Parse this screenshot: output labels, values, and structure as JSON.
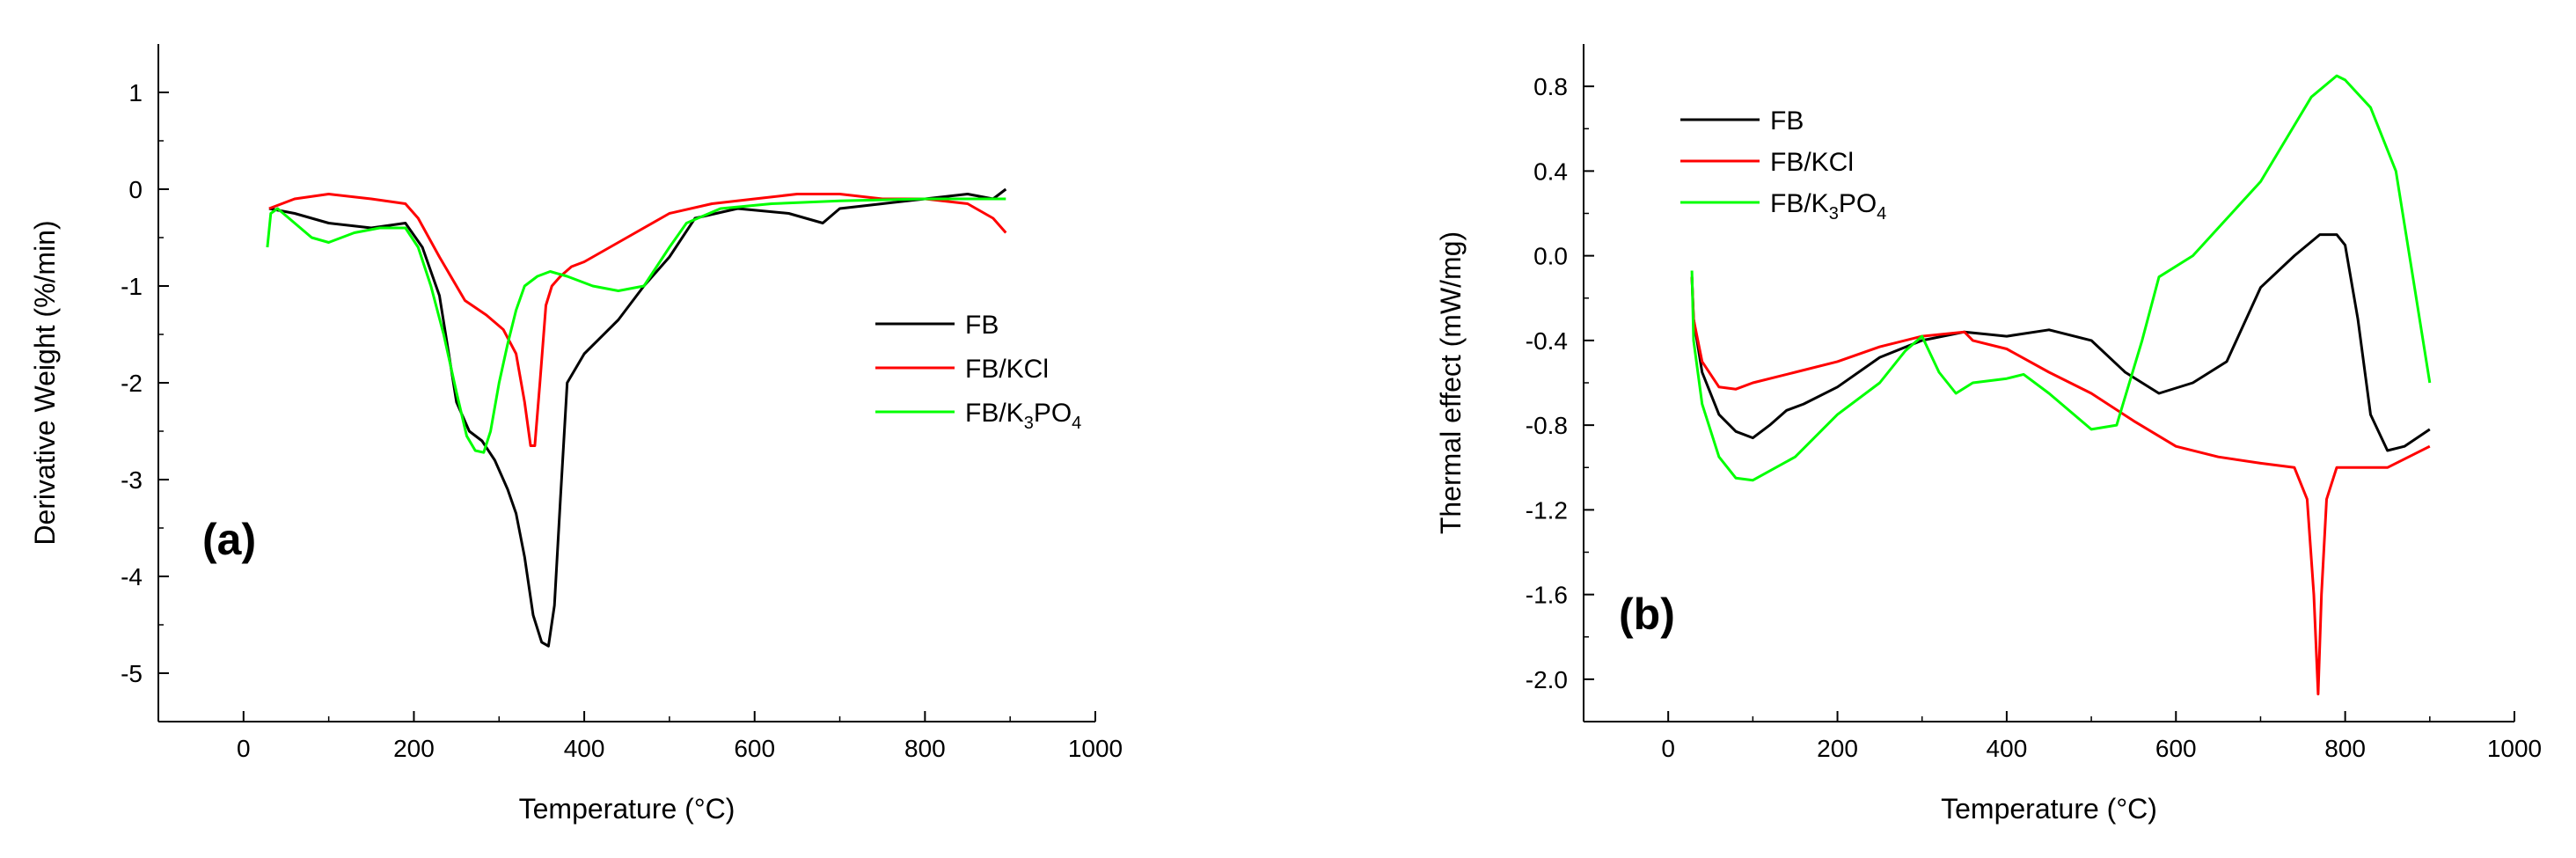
{
  "chart_data": [
    {
      "type": "line",
      "panel_label": "(a)",
      "xlabel": "Temperature (°C)",
      "ylabel": "Derivative Weight (%/min)",
      "xlim": [
        -100,
        1000
      ],
      "ylim": [
        -5.5,
        1.5
      ],
      "xticks": [
        0,
        200,
        400,
        600,
        800,
        1000
      ],
      "yticks": [
        1,
        0,
        -1,
        -2,
        -3,
        -4,
        -5
      ],
      "xtick_labels": [
        "0",
        "200",
        "400",
        "600",
        "800",
        "1000"
      ],
      "ytick_labels": [
        "1",
        "0",
        "-1",
        "-2",
        "-3",
        "-4",
        "-5"
      ],
      "legend": [
        {
          "text": "FB",
          "base": "FB",
          "sub": "",
          "post": "",
          "sub2": ""
        },
        {
          "text": "FB/KCl",
          "base": "FB/KCl",
          "sub": "",
          "post": "",
          "sub2": ""
        },
        {
          "text": "FB/K3PO4",
          "base": "FB/K",
          "sub": "3",
          "post": "PO",
          "sub2": "4"
        }
      ],
      "series": [
        {
          "name": "FB",
          "color": "#000000",
          "x": [
            30,
            60,
            100,
            150,
            190,
            210,
            230,
            250,
            265,
            280,
            295,
            310,
            320,
            330,
            340,
            350,
            358,
            365,
            372,
            380,
            400,
            440,
            470,
            500,
            530,
            580,
            640,
            680,
            700,
            750,
            800,
            850,
            880,
            895
          ],
          "y": [
            -0.2,
            -0.25,
            -0.35,
            -0.4,
            -0.35,
            -0.6,
            -1.1,
            -2.2,
            -2.5,
            -2.6,
            -2.8,
            -3.1,
            -3.35,
            -3.8,
            -4.4,
            -4.68,
            -4.72,
            -4.3,
            -3.2,
            -2.0,
            -1.7,
            -1.35,
            -1.0,
            -0.7,
            -0.3,
            -0.2,
            -0.25,
            -0.35,
            -0.2,
            -0.15,
            -0.1,
            -0.05,
            -0.1,
            0.0
          ]
        },
        {
          "name": "FB/KCl",
          "color": "#ff0000",
          "x": [
            30,
            60,
            100,
            150,
            190,
            205,
            230,
            260,
            285,
            305,
            320,
            330,
            337,
            342,
            348,
            355,
            362,
            372,
            385,
            400,
            450,
            500,
            550,
            600,
            650,
            700,
            750,
            800,
            850,
            880,
            895
          ],
          "y": [
            -0.2,
            -0.1,
            -0.05,
            -0.1,
            -0.15,
            -0.3,
            -0.7,
            -1.15,
            -1.3,
            -1.45,
            -1.7,
            -2.2,
            -2.65,
            -2.65,
            -2.0,
            -1.2,
            -1.0,
            -0.9,
            -0.8,
            -0.75,
            -0.5,
            -0.25,
            -0.15,
            -0.1,
            -0.05,
            -0.05,
            -0.1,
            -0.1,
            -0.15,
            -0.3,
            -0.45
          ]
        },
        {
          "name": "FB/K3PO4",
          "color": "#00ff00",
          "x": [
            28,
            32,
            40,
            60,
            80,
            100,
            130,
            160,
            190,
            205,
            220,
            235,
            250,
            262,
            272,
            282,
            290,
            300,
            310,
            320,
            330,
            345,
            360,
            380,
            410,
            440,
            470,
            500,
            520,
            560,
            620,
            700,
            800,
            880,
            895
          ],
          "y": [
            -0.6,
            -0.25,
            -0.2,
            -0.35,
            -0.5,
            -0.55,
            -0.45,
            -0.4,
            -0.4,
            -0.6,
            -1.0,
            -1.5,
            -2.1,
            -2.55,
            -2.7,
            -2.72,
            -2.5,
            -2.0,
            -1.6,
            -1.25,
            -1.0,
            -0.9,
            -0.85,
            -0.9,
            -1.0,
            -1.05,
            -1.0,
            -0.6,
            -0.35,
            -0.2,
            -0.15,
            -0.12,
            -0.1,
            -0.1,
            -0.1
          ]
        }
      ]
    },
    {
      "type": "line",
      "panel_label": "(b)",
      "xlabel": "Temperature (°C)",
      "ylabel": "Thermal effect (mW/mg)",
      "xlim": [
        -100,
        1000
      ],
      "ylim": [
        -2.2,
        1.0
      ],
      "xticks": [
        0,
        200,
        400,
        600,
        800,
        1000
      ],
      "yticks": [
        0.8,
        0.4,
        0.0,
        -0.4,
        -0.8,
        -1.2,
        -1.6,
        -2.0
      ],
      "xtick_labels": [
        "0",
        "200",
        "400",
        "600",
        "800",
        "1000"
      ],
      "ytick_labels": [
        "0.8",
        "0.4",
        "0.0",
        "-0.4",
        "-0.8",
        "-1.2",
        "-1.6",
        "-2.0"
      ],
      "legend": [
        {
          "text": "FB",
          "base": "FB",
          "sub": "",
          "post": "",
          "sub2": ""
        },
        {
          "text": "FB/KCl",
          "base": "FB/KCl",
          "sub": "",
          "post": "",
          "sub2": ""
        },
        {
          "text": "FB/K3PO4",
          "base": "FB/K",
          "sub": "3",
          "post": "PO",
          "sub2": "4"
        }
      ],
      "series": [
        {
          "name": "FB",
          "color": "#000000",
          "x": [
            28,
            30,
            40,
            60,
            80,
            100,
            120,
            140,
            160,
            200,
            250,
            300,
            350,
            400,
            450,
            500,
            540,
            580,
            620,
            660,
            700,
            740,
            770,
            790,
            800,
            815,
            830,
            850,
            870,
            900
          ],
          "y": [
            -0.1,
            -0.3,
            -0.55,
            -0.75,
            -0.83,
            -0.86,
            -0.8,
            -0.73,
            -0.7,
            -0.62,
            -0.48,
            -0.4,
            -0.36,
            -0.38,
            -0.35,
            -0.4,
            -0.55,
            -0.65,
            -0.6,
            -0.5,
            -0.15,
            0.0,
            0.1,
            0.1,
            0.05,
            -0.3,
            -0.75,
            -0.92,
            -0.9,
            -0.82
          ]
        },
        {
          "name": "FB/KCl",
          "color": "#ff0000",
          "x": [
            28,
            30,
            40,
            60,
            80,
            100,
            150,
            200,
            250,
            300,
            350,
            360,
            400,
            450,
            500,
            550,
            600,
            650,
            700,
            740,
            755,
            763,
            768,
            772,
            778,
            790,
            850,
            900
          ],
          "y": [
            -0.1,
            -0.3,
            -0.5,
            -0.62,
            -0.63,
            -0.6,
            -0.55,
            -0.5,
            -0.43,
            -0.38,
            -0.36,
            -0.4,
            -0.44,
            -0.55,
            -0.65,
            -0.78,
            -0.9,
            -0.95,
            -0.98,
            -1.0,
            -1.15,
            -1.6,
            -2.07,
            -1.6,
            -1.15,
            -1.0,
            -1.0,
            -0.9
          ]
        },
        {
          "name": "FB/K3PO4",
          "color": "#00ff00",
          "x": [
            28,
            30,
            40,
            60,
            80,
            100,
            150,
            200,
            250,
            280,
            300,
            320,
            340,
            360,
            400,
            420,
            450,
            500,
            530,
            560,
            580,
            620,
            700,
            760,
            790,
            800,
            830,
            860,
            880,
            900
          ],
          "y": [
            -0.07,
            -0.4,
            -0.7,
            -0.95,
            -1.05,
            -1.06,
            -0.95,
            -0.75,
            -0.6,
            -0.45,
            -0.38,
            -0.55,
            -0.65,
            -0.6,
            -0.58,
            -0.56,
            -0.65,
            -0.82,
            -0.8,
            -0.4,
            -0.1,
            0.0,
            0.35,
            0.75,
            0.85,
            0.83,
            0.7,
            0.4,
            -0.1,
            -0.6
          ]
        }
      ]
    }
  ]
}
